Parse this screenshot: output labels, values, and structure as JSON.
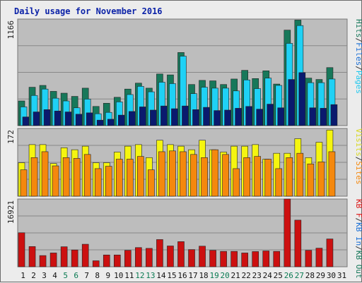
{
  "chart_data": {
    "type": "bar",
    "title": "Daily usage for November 2016",
    "categories": [
      "1",
      "2",
      "3",
      "4",
      "5",
      "6",
      "7",
      "8",
      "9",
      "10",
      "11",
      "12",
      "13",
      "14",
      "15",
      "16",
      "17",
      "18",
      "19",
      "20",
      "21",
      "22",
      "23",
      "24",
      "25",
      "26",
      "27",
      "28",
      "29",
      "30",
      "31"
    ],
    "weekend_days": [
      5,
      6,
      12,
      13,
      19,
      20,
      26,
      27
    ],
    "colors": {
      "hits": "#17785a",
      "files": "#1fd1f5",
      "pages": "#0a1a6e",
      "visits": "#f5f510",
      "sites": "#f5880d",
      "kbin": "#cc1010",
      "kbout": "#f02020",
      "weekend_label": "#0a7a52",
      "weekday_label": "#111111",
      "plot_bg": "#bdbdbd",
      "grid": "#888888"
    },
    "panels": [
      {
        "name": "hits-files-pages",
        "ymax_label": "1166",
        "ymax": 1166,
        "legend": [
          {
            "text": "Hits",
            "color": "#17785a"
          },
          {
            "text": "/",
            "color": "#333333"
          },
          {
            "text": "Files",
            "color": "#1a6fd6"
          },
          {
            "text": "/",
            "color": "#333333"
          },
          {
            "text": "Pages",
            "color": "#1fc8ee"
          }
        ],
        "series": [
          {
            "name": "Hits",
            "color": "#17785a",
            "offset": 0,
            "values": [
              270,
              420,
              440,
              375,
              355,
              320,
              410,
              210,
              245,
              310,
              400,
              465,
              410,
              565,
              555,
              800,
              450,
              495,
              490,
              450,
              510,
              605,
              515,
              600,
              455,
              1045,
              1155,
              520,
              505,
              635,
              null
            ]
          },
          {
            "name": "Files",
            "color": "#1fd1f5",
            "offset": 1,
            "values": [
              205,
              330,
              400,
              300,
              270,
              195,
              290,
              130,
              145,
              260,
              340,
              430,
              370,
              475,
              460,
              760,
              350,
              420,
              410,
              410,
              380,
              500,
              405,
              520,
              440,
              900,
              1095,
              470,
              470,
              510,
              null
            ]
          },
          {
            "name": "Pages",
            "color": "#0a1a6e",
            "offset": 2,
            "values": [
              95,
              150,
              175,
              160,
              150,
              125,
              140,
              60,
              70,
              115,
              155,
              205,
              170,
              215,
              185,
              215,
              175,
              200,
              165,
              170,
              190,
              210,
              180,
              235,
              195,
              505,
              580,
              195,
              190,
              230,
              null
            ]
          }
        ]
      },
      {
        "name": "visits-sites",
        "ymax_label": "172",
        "ymax": 172,
        "legend": [
          {
            "text": "Visits",
            "color": "#d8d820"
          },
          {
            "text": "/",
            "color": "#333333"
          },
          {
            "text": "Sites",
            "color": "#f5880d"
          }
        ],
        "series": [
          {
            "name": "Visits",
            "color": "#f5f510",
            "offset": 0,
            "values": [
              85,
              131,
              131,
              83,
              123,
              118,
              127,
              85,
              85,
              112,
              127,
              131,
              98,
              142,
              131,
              127,
              118,
              142,
              118,
              112,
              127,
              127,
              131,
              94,
              109,
              109,
              146,
              98,
              137,
              168,
              null
            ]
          },
          {
            "name": "Sites",
            "color": "#f5880d",
            "offset": 1,
            "values": [
              67,
              98,
              113,
              77,
              98,
              96,
              106,
              70,
              76,
              94,
              94,
              101,
              67,
              113,
              115,
              113,
              106,
              98,
              118,
              106,
              70,
              98,
              101,
              94,
              70,
              98,
              109,
              82,
              87,
              113,
              null
            ]
          }
        ]
      },
      {
        "name": "kbf-kbin-kbout",
        "ymax_label": "16921",
        "ymax": 16921,
        "legend": [
          {
            "text": "KB F",
            "color": "#dd1515"
          },
          {
            "text": "/",
            "color": "#333333"
          },
          {
            "text": "KB In",
            "color": "#1a6fd6"
          },
          {
            "text": "/",
            "color": "#333333"
          },
          {
            "text": "KB Out",
            "color": "#17785a"
          }
        ],
        "series": [
          {
            "name": "KB F",
            "color": "#cc1010",
            "offset": 0,
            "values": [
              8500,
              5050,
              2800,
              3450,
              5000,
              4200,
              5630,
              1500,
              2950,
              2950,
              4100,
              4800,
              4600,
              6800,
              5200,
              6280,
              4300,
              5150,
              4100,
              3850,
              3850,
              3450,
              3800,
              3960,
              3850,
              16921,
              11650,
              4100,
              4650,
              6950,
              null
            ]
          }
        ]
      }
    ]
  }
}
